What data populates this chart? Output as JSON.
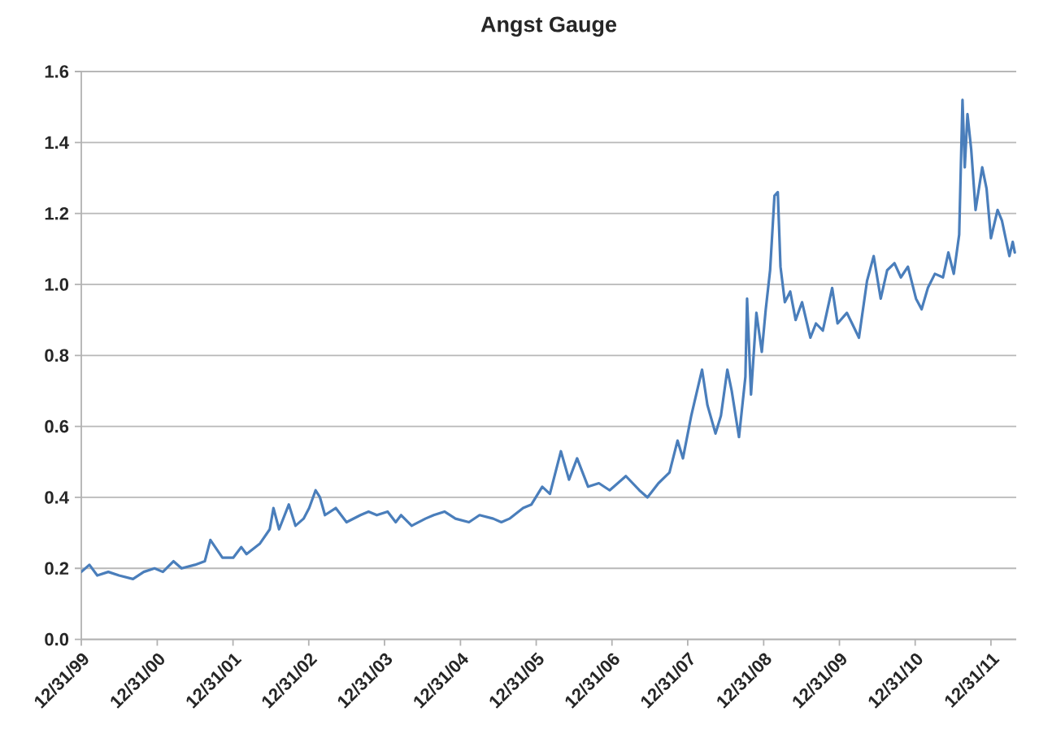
{
  "chart_data": {
    "type": "line",
    "title": "Angst Gauge",
    "color": "#4a7ebb",
    "grid": "y",
    "xlim": [
      "1999-12-31",
      "2012-05-01"
    ],
    "ylim": [
      0,
      1.6
    ],
    "xticks": [
      {
        "value": "1999-12-31",
        "label": "12/31/99"
      },
      {
        "value": "2000-12-31",
        "label": "12/31/00"
      },
      {
        "value": "2001-12-31",
        "label": "12/31/01"
      },
      {
        "value": "2002-12-31",
        "label": "12/31/02"
      },
      {
        "value": "2003-12-31",
        "label": "12/31/03"
      },
      {
        "value": "2004-12-31",
        "label": "12/31/04"
      },
      {
        "value": "2005-12-31",
        "label": "12/31/05"
      },
      {
        "value": "2006-12-31",
        "label": "12/31/06"
      },
      {
        "value": "2007-12-31",
        "label": "12/31/07"
      },
      {
        "value": "2008-12-31",
        "label": "12/31/08"
      },
      {
        "value": "2009-12-31",
        "label": "12/31/09"
      },
      {
        "value": "2010-12-31",
        "label": "12/31/10"
      },
      {
        "value": "2011-12-31",
        "label": "12/31/11"
      }
    ],
    "yticks": [
      {
        "value": 0,
        "label": "0.0"
      },
      0.2,
      0.4,
      0.6,
      0.8,
      {
        "value": 1,
        "label": "1.0"
      },
      1.2,
      1.4,
      1.6
    ],
    "x": [
      "1999-12-31",
      "2000-02-08",
      "2000-03-17",
      "2000-05-09",
      "2000-06-30",
      "2000-09-05",
      "2000-10-27",
      "2000-12-18",
      "2001-01-27",
      "2001-03-19",
      "2001-04-27",
      "2001-07-01",
      "2001-08-17",
      "2001-09-13",
      "2001-11-10",
      "2002-01-01",
      "2002-02-09",
      "2002-03-06",
      "2002-05-10",
      "2002-06-26",
      "2002-07-14",
      "2002-08-10",
      "2002-09-26",
      "2002-10-28",
      "2002-12-06",
      "2003-01-02",
      "2003-02-02",
      "2003-02-23",
      "2003-03-19",
      "2003-05-10",
      "2003-07-01",
      "2003-09-06",
      "2003-10-15",
      "2003-11-24",
      "2004-01-15",
      "2004-02-23",
      "2004-03-20",
      "2004-05-10",
      "2004-07-15",
      "2004-08-24",
      "2004-10-15",
      "2004-12-07",
      "2005-02-10",
      "2005-04-02",
      "2005-06-07",
      "2005-07-16",
      "2005-08-24",
      "2005-10-29",
      "2005-12-08",
      "2006-01-29",
      "2006-03-07",
      "2006-04-29",
      "2006-06-07",
      "2006-07-16",
      "2006-09-07",
      "2006-10-29",
      "2006-12-20",
      "2007-03-08",
      "2007-05-12",
      "2007-06-20",
      "2007-08-12",
      "2007-10-04",
      "2007-11-12",
      "2007-12-08",
      "2008-01-17",
      "2008-03-09",
      "2008-04-04",
      "2008-05-13",
      "2008-06-08",
      "2008-07-09",
      "2008-07-30",
      "2008-09-03",
      "2008-10-04",
      "2008-10-12",
      "2008-10-31",
      "2008-11-26",
      "2008-12-22",
      "2009-01-10",
      "2009-01-31",
      "2009-02-21",
      "2009-03-09",
      "2009-03-22",
      "2009-04-12",
      "2009-05-08",
      "2009-06-03",
      "2009-07-04",
      "2009-08-13",
      "2009-09-09",
      "2009-10-12",
      "2009-11-26",
      "2009-12-22",
      "2010-02-05",
      "2010-03-02",
      "2010-04-04",
      "2010-05-13",
      "2010-06-14",
      "2010-07-18",
      "2010-08-18",
      "2010-09-22",
      "2010-10-23",
      "2010-11-26",
      "2011-01-04",
      "2011-01-31",
      "2011-03-02",
      "2011-04-05",
      "2011-05-14",
      "2011-06-09",
      "2011-07-05",
      "2011-07-31",
      "2011-08-16",
      "2011-08-27",
      "2011-09-09",
      "2011-09-27",
      "2011-10-18",
      "2011-11-19",
      "2011-12-10",
      "2011-12-31",
      "2012-02-01",
      "2012-02-22",
      "2012-03-11",
      "2012-03-29",
      "2012-04-14",
      "2012-04-24"
    ],
    "values": [
      0.19,
      0.21,
      0.18,
      0.19,
      0.18,
      0.17,
      0.19,
      0.2,
      0.19,
      0.22,
      0.2,
      0.21,
      0.22,
      0.28,
      0.23,
      0.23,
      0.26,
      0.24,
      0.27,
      0.31,
      0.37,
      0.31,
      0.38,
      0.32,
      0.34,
      0.37,
      0.42,
      0.4,
      0.35,
      0.37,
      0.33,
      0.35,
      0.36,
      0.35,
      0.36,
      0.33,
      0.35,
      0.32,
      0.34,
      0.35,
      0.36,
      0.34,
      0.33,
      0.35,
      0.34,
      0.33,
      0.34,
      0.37,
      0.38,
      0.43,
      0.41,
      0.53,
      0.45,
      0.51,
      0.43,
      0.44,
      0.42,
      0.46,
      0.42,
      0.4,
      0.44,
      0.47,
      0.56,
      0.51,
      0.63,
      0.76,
      0.66,
      0.58,
      0.63,
      0.76,
      0.7,
      0.57,
      0.74,
      0.96,
      0.69,
      0.92,
      0.81,
      0.93,
      1.04,
      1.25,
      1.26,
      1.05,
      0.95,
      0.98,
      0.9,
      0.95,
      0.85,
      0.89,
      0.87,
      0.99,
      0.89,
      0.92,
      0.89,
      0.85,
      1.01,
      1.08,
      0.96,
      1.04,
      1.06,
      1.02,
      1.05,
      0.96,
      0.93,
      0.99,
      1.03,
      1.02,
      1.09,
      1.03,
      1.14,
      1.52,
      1.33,
      1.48,
      1.38,
      1.21,
      1.33,
      1.27,
      1.13,
      1.21,
      1.18,
      1.13,
      1.08,
      1.12,
      1.09
    ]
  }
}
